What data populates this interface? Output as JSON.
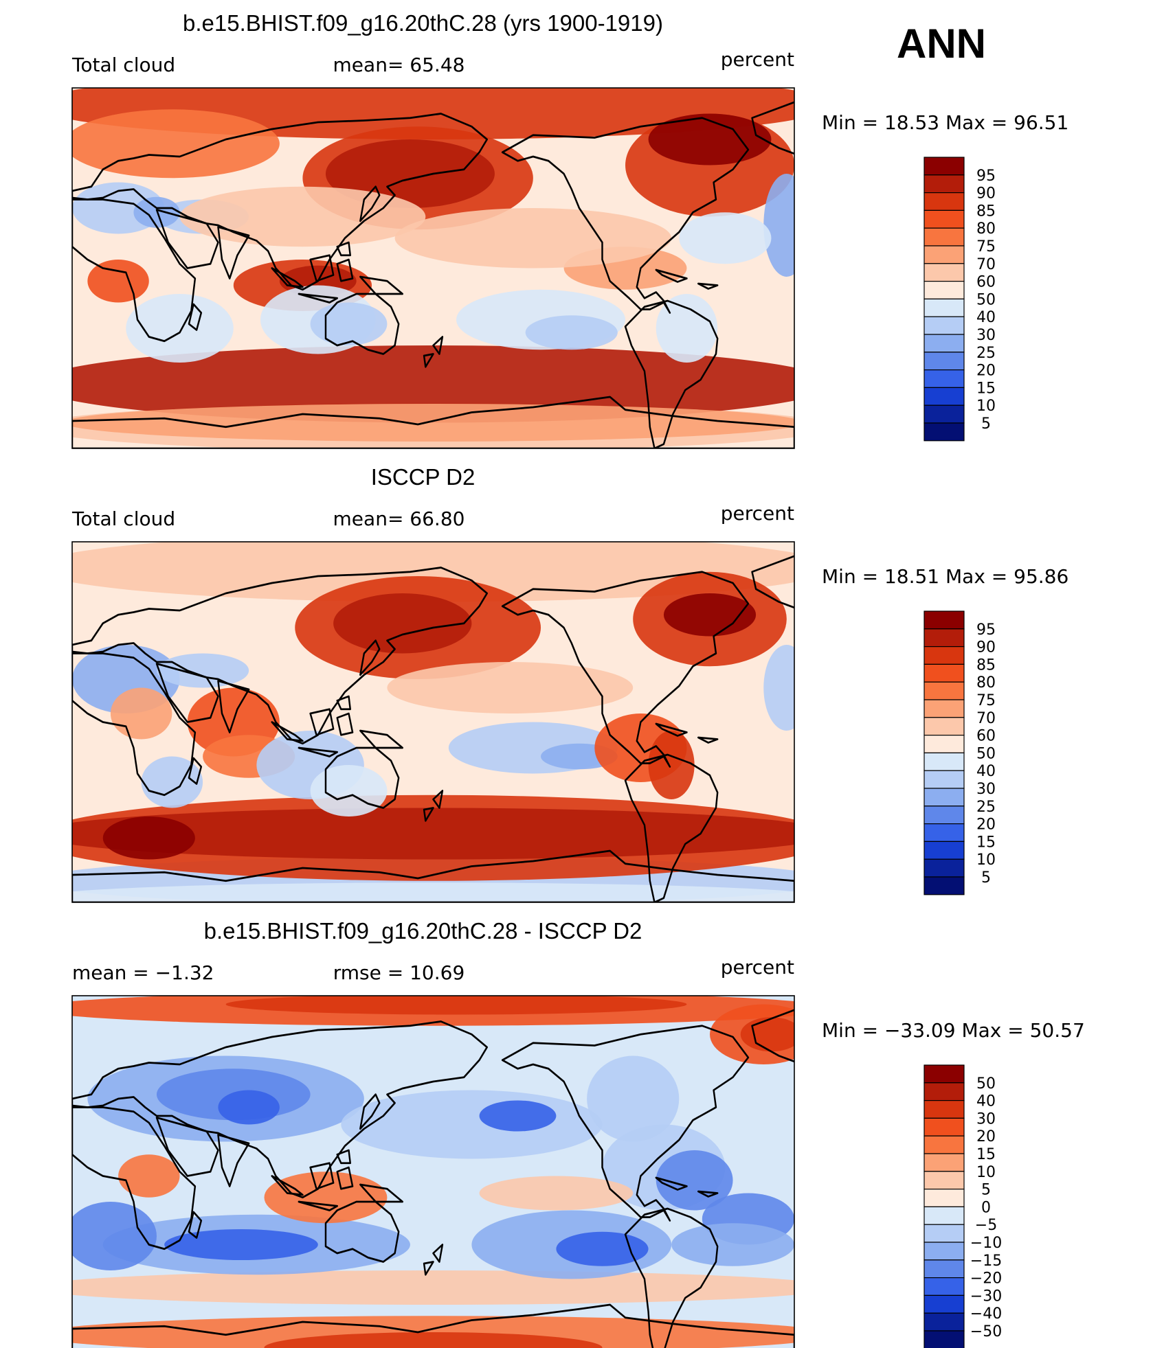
{
  "season": "ANN",
  "units": "percent",
  "panels": [
    {
      "id": "model",
      "title": "b.e15.BHIST.f09_g16.20thC.28 (yrs 1900-1919)",
      "left_label": "Total cloud",
      "center_label": "mean=   65.48",
      "right_label": "percent",
      "minmax": "Min =    18.53  Max =    96.51",
      "colorbar": {
        "ticks": [
          "95",
          "90",
          "85",
          "80",
          "75",
          "70",
          "60",
          "50",
          "40",
          "30",
          "25",
          "20",
          "15",
          "10",
          "5"
        ],
        "colors": [
          "#8b0000",
          "#b31d0a",
          "#d8360f",
          "#f0501e",
          "#f8753f",
          "#fba276",
          "#fcc8ab",
          "#feeadc",
          "#d8e8f8",
          "#b5cdf5",
          "#8caef0",
          "#5f87ea",
          "#3662e8",
          "#173fd2",
          "#0a229b",
          "#030f73"
        ]
      }
    },
    {
      "id": "obs",
      "title": "ISCCP D2",
      "left_label": "Total cloud",
      "center_label": "mean=   66.80",
      "right_label": "percent",
      "minmax": "Min =    18.51  Max =    95.86",
      "colorbar": {
        "ticks": [
          "95",
          "90",
          "85",
          "80",
          "75",
          "70",
          "60",
          "50",
          "40",
          "30",
          "25",
          "20",
          "15",
          "10",
          "5"
        ],
        "colors": [
          "#8b0000",
          "#b31d0a",
          "#d8360f",
          "#f0501e",
          "#f8753f",
          "#fba276",
          "#fcc8ab",
          "#feeadc",
          "#d8e8f8",
          "#b5cdf5",
          "#8caef0",
          "#5f87ea",
          "#3662e8",
          "#173fd2",
          "#0a229b",
          "#030f73"
        ]
      }
    },
    {
      "id": "diff",
      "title": "b.e15.BHIST.f09_g16.20thC.28 - ISCCP D2",
      "left_label": "mean =    −1.32",
      "center_label": "rmse =    10.69",
      "right_label": "percent",
      "minmax": "Min = −33.09  Max =    50.57",
      "colorbar": {
        "ticks": [
          "50",
          "40",
          "30",
          "20",
          "15",
          "10",
          "5",
          "0",
          "−5",
          "−10",
          "−15",
          "−20",
          "−30",
          "−40",
          "−50"
        ],
        "colors": [
          "#8b0000",
          "#b31d0a",
          "#d8360f",
          "#f0501e",
          "#f8753f",
          "#fba276",
          "#fcc8ab",
          "#feeadc",
          "#d8e8f8",
          "#b5cdf5",
          "#8caef0",
          "#5f87ea",
          "#3662e8",
          "#173fd2",
          "#0a229b",
          "#030f73"
        ]
      }
    }
  ]
}
